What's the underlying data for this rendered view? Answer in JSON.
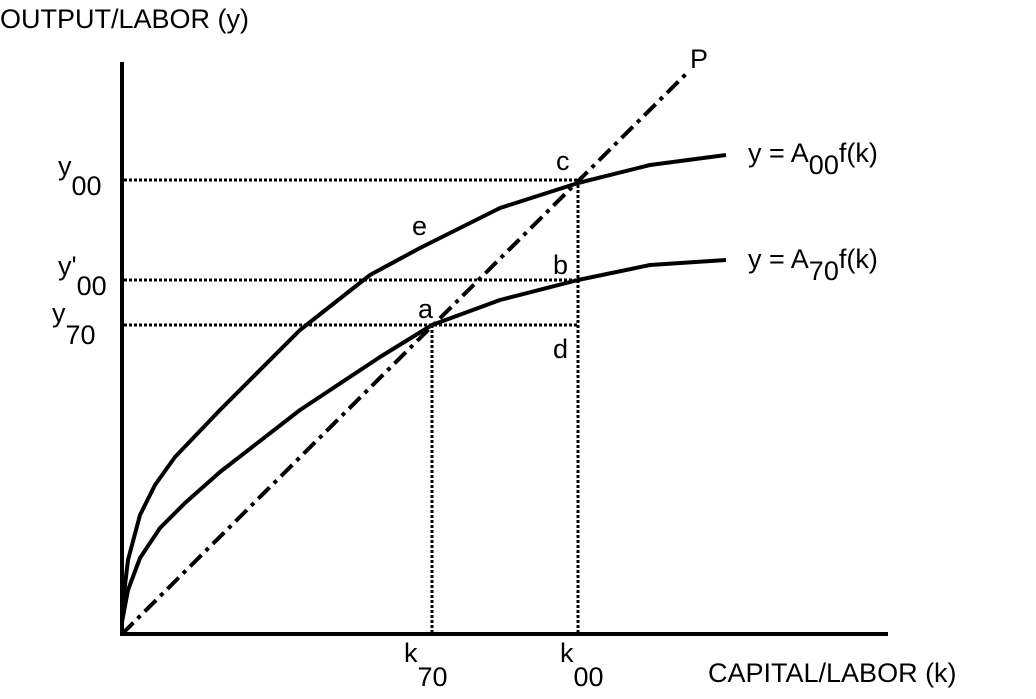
{
  "axes": {
    "y_label": "OUTPUT/LABOR (y)",
    "x_label": "CAPITAL/LABOR (k)"
  },
  "y_levels": [
    {
      "base": "y",
      "sub": "00"
    },
    {
      "base": "y'",
      "sub": "00"
    },
    {
      "base": "y",
      "sub": "70"
    }
  ],
  "k_levels": [
    {
      "base": "k",
      "sub": "70"
    },
    {
      "base": "k",
      "sub": "00"
    }
  ],
  "curves": [
    {
      "prefix": "y = A",
      "sub": "00",
      "suffix": "f(k)"
    },
    {
      "prefix": "y = A",
      "sub": "70",
      "suffix": "f(k)"
    }
  ],
  "ray_label": "P",
  "points": [
    "a",
    "b",
    "c",
    "d",
    "e"
  ]
}
